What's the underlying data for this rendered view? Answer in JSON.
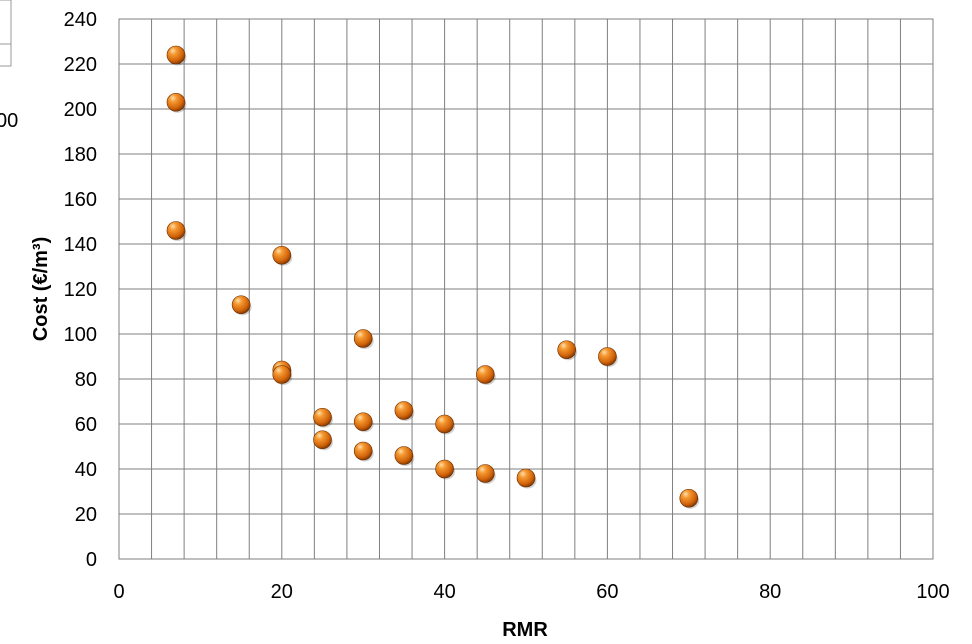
{
  "chart_data": {
    "type": "scatter",
    "xlabel": "RMR",
    "ylabel": "Cost (€/m³)",
    "xlim": [
      0,
      100
    ],
    "ylim": [
      0,
      240
    ],
    "x_ticks": [
      0,
      20,
      40,
      60,
      80,
      100
    ],
    "y_ticks": [
      0,
      20,
      40,
      60,
      80,
      100,
      120,
      140,
      160,
      180,
      200,
      220,
      240
    ],
    "grid": true,
    "marker_color": "#e07a10",
    "series": [
      {
        "points": [
          {
            "x": 7,
            "y": 224
          },
          {
            "x": 7,
            "y": 203
          },
          {
            "x": 7,
            "y": 146
          },
          {
            "x": 15,
            "y": 113
          },
          {
            "x": 20,
            "y": 135
          },
          {
            "x": 20,
            "y": 84
          },
          {
            "x": 20,
            "y": 82
          },
          {
            "x": 25,
            "y": 63
          },
          {
            "x": 25,
            "y": 53
          },
          {
            "x": 30,
            "y": 98
          },
          {
            "x": 30,
            "y": 61
          },
          {
            "x": 30,
            "y": 48
          },
          {
            "x": 35,
            "y": 66
          },
          {
            "x": 35,
            "y": 46
          },
          {
            "x": 40,
            "y": 60
          },
          {
            "x": 40,
            "y": 40
          },
          {
            "x": 45,
            "y": 82
          },
          {
            "x": 45,
            "y": 38
          },
          {
            "x": 50,
            "y": 36
          },
          {
            "x": 55,
            "y": 93
          },
          {
            "x": 60,
            "y": 90
          },
          {
            "x": 70,
            "y": 27
          }
        ]
      }
    ]
  },
  "artifacts": {
    "left_edge_text": "00"
  }
}
